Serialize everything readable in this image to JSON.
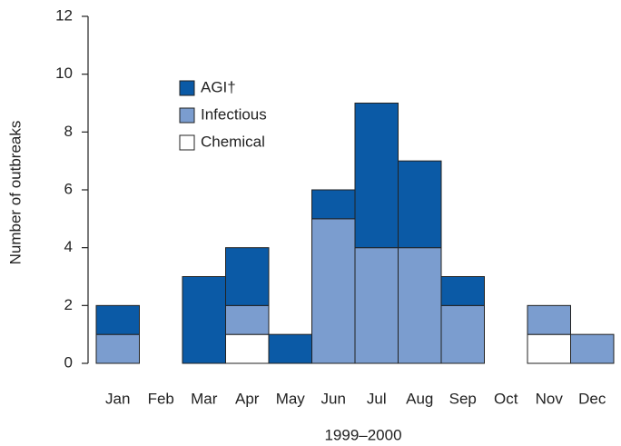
{
  "chart_data": {
    "type": "stacked-bar",
    "x_label": "1999–2000",
    "y_label": "Number of outbreaks",
    "categories": [
      "Jan",
      "Feb",
      "Mar",
      "Apr",
      "May",
      "Jun",
      "Jul",
      "Aug",
      "Sep",
      "Oct",
      "Nov",
      "Dec"
    ],
    "series": [
      {
        "name": "AGI†",
        "color": "#0b5aa6",
        "values": [
          1,
          0,
          3,
          2,
          1,
          1,
          5,
          3,
          1,
          0,
          0,
          0
        ]
      },
      {
        "name": "Infectious",
        "color": "#7b9dcf",
        "values": [
          1,
          0,
          0,
          1,
          0,
          5,
          4,
          4,
          2,
          0,
          1,
          1
        ]
      },
      {
        "name": "Chemical",
        "color": "#ffffff",
        "values": [
          0,
          0,
          0,
          1,
          0,
          0,
          0,
          0,
          0,
          0,
          1,
          0
        ]
      }
    ],
    "ylim": [
      0,
      12
    ],
    "yticks": [
      0,
      2,
      4,
      6,
      8,
      10,
      12
    ]
  }
}
